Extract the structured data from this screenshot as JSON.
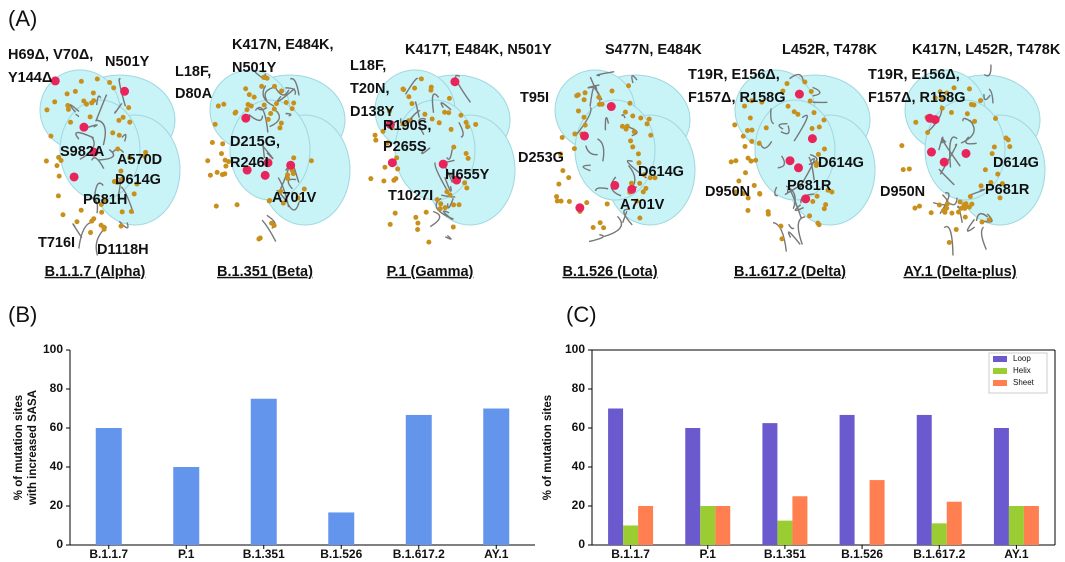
{
  "panel_a": {
    "label": "(A)",
    "structures": [
      {
        "name": "B.1.1.7 (Alpha)",
        "mutations": [
          "H69Δ, V70Δ,",
          "Y144Δ",
          "N501Y",
          "S982A",
          "A570D",
          "D614G",
          "P681H",
          "T716I",
          "D1118H"
        ]
      },
      {
        "name": "B.1.351 (Beta)",
        "mutations": [
          "K417N, E484K,",
          "N501Y",
          "L18F,",
          "D80A",
          "D215G,",
          "R246I",
          "A701V"
        ]
      },
      {
        "name": "P.1 (Gamma)",
        "mutations": [
          "K417T, E484K, N501Y",
          "L18F,",
          "T20N,",
          "D138Y",
          "R190S,",
          "P265S",
          "H655Y",
          "T1027I"
        ]
      },
      {
        "name": "B.1.526 (Lota)",
        "mutations": [
          "S477N, E484K",
          "T95I",
          "D253G",
          "D614G",
          "A701V"
        ]
      },
      {
        "name": "B.1.617.2 (Delta)",
        "mutations": [
          "L452R, T478K",
          "T19R, E156Δ,",
          "F157Δ, R158G",
          "D614G",
          "D950N",
          "P681R"
        ]
      },
      {
        "name": "AY.1 (Delta-plus)",
        "mutations": [
          "K417N, L452R, T478K",
          "T19R, E156Δ,",
          "F157Δ, R158G",
          "D614G",
          "D950N",
          "P681R"
        ]
      }
    ]
  },
  "chart_data": [
    {
      "type": "bar",
      "label": "(B)",
      "ylabel": [
        "% of mutation sites",
        "with increased SASA"
      ],
      "categories": [
        "B.1.1.7",
        "P.1",
        "B.1.351",
        "B.1.526",
        "B.1.617.2",
        "AY.1"
      ],
      "values": [
        60,
        40,
        75,
        16.7,
        66.7,
        70
      ],
      "color": "#6495ed",
      "ylim": [
        0,
        100
      ],
      "yticks": [
        0,
        20,
        40,
        60,
        80,
        100
      ],
      "box": false
    },
    {
      "type": "grouped-bar",
      "label": "(C)",
      "ylabel": [
        "% of mutation sites"
      ],
      "categories": [
        "B.1.1.7",
        "P.1",
        "B.1.351",
        "B.1.526",
        "B.1.617.2",
        "AY.1"
      ],
      "series": [
        {
          "name": "Loop",
          "color": "#6a5acd",
          "values": [
            70,
            60,
            62.5,
            66.7,
            66.7,
            60
          ]
        },
        {
          "name": "Helix",
          "color": "#9acd32",
          "values": [
            10,
            20,
            12.5,
            0,
            11.1,
            20
          ]
        },
        {
          "name": "Sheet",
          "color": "#ff7f50",
          "values": [
            20,
            20,
            25,
            33.3,
            22.2,
            20
          ]
        }
      ],
      "ylim": [
        0,
        100
      ],
      "yticks": [
        0,
        20,
        40,
        60,
        80,
        100
      ],
      "box": true,
      "legend": "upper right"
    }
  ]
}
